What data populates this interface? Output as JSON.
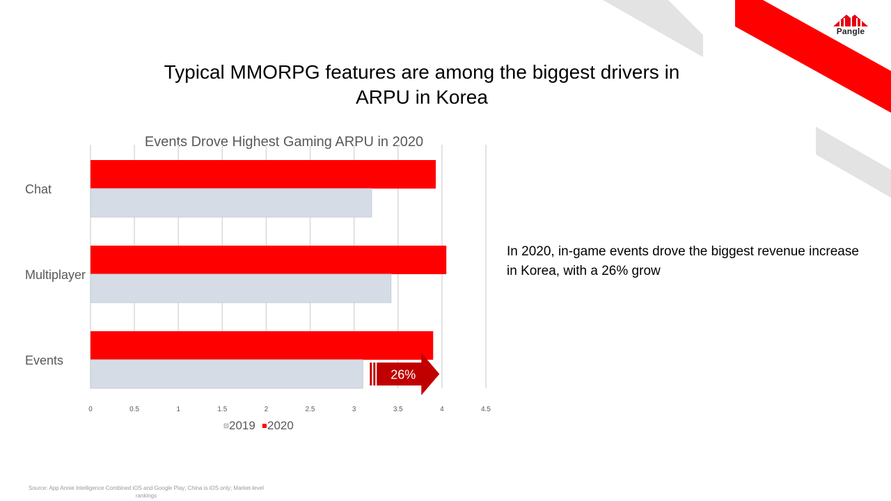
{
  "slide": {
    "title": "Typical MMORPG features are among the biggest drivers in ARPU in Korea",
    "insight": "In 2020, in-game events drove the biggest revenue increase in Korea, with a 26% grow",
    "source": "Source: App Annie Intelligence Combined iOS and Google Play; China is iOS only; Market-level rankings",
    "logo_text": "Pangle"
  },
  "colors": {
    "accent": "#ff0000",
    "series_2019": "#d6dce5",
    "series_2020": "#ff0000",
    "arrow": "#c00000",
    "deco_gray": "#e3e3e3"
  },
  "chart_data": {
    "type": "bar",
    "orientation": "horizontal",
    "title": "Events Drove Highest Gaming ARPU in 2020",
    "categories": [
      "Chat",
      "Multiplayer",
      "Events"
    ],
    "series": [
      {
        "name": "2019",
        "values": [
          3.2,
          3.42,
          3.1
        ]
      },
      {
        "name": "2020",
        "values": [
          3.93,
          4.05,
          3.9
        ]
      }
    ],
    "xlim": [
      0,
      4.5
    ],
    "xticks": [
      "0",
      "0.5",
      "1",
      "1.5",
      "2",
      "2.5",
      "3",
      "3.5",
      "4",
      "4.5"
    ],
    "grid": true,
    "legend": "bottom",
    "annotation": {
      "category": "Events",
      "label": "26%"
    }
  }
}
